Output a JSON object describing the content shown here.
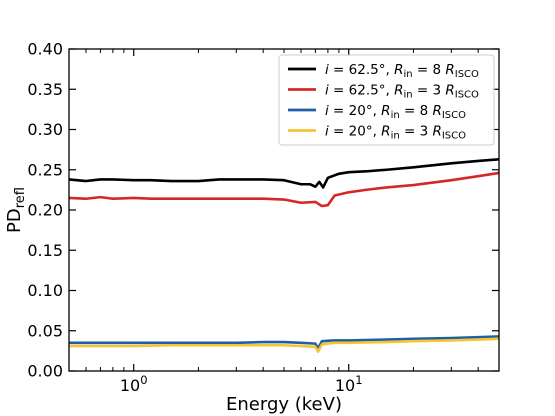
{
  "chart_data": {
    "type": "line",
    "xlabel": "Energy (keV)",
    "ylabel_main": "PD",
    "ylabel_sub": "refl",
    "xscale": "log",
    "xlim": [
      0.5,
      50
    ],
    "ylim": [
      0,
      0.4
    ],
    "grid": false,
    "legend_position": "top-right",
    "x_ticks": [
      {
        "value": 1,
        "base": "10",
        "exp": "0"
      },
      {
        "value": 10,
        "base": "10",
        "exp": "1"
      }
    ],
    "y_ticks": [
      "0.00",
      "0.05",
      "0.10",
      "0.15",
      "0.20",
      "0.25",
      "0.30",
      "0.35",
      "0.40"
    ],
    "series": [
      {
        "name": "i = 62.5°, R_in = 8 R_ISCO",
        "legend": {
          "var": "i",
          "ival": "62.5°",
          "r": "R",
          "rsub": "in",
          "rval": "8",
          "risco": "R",
          "riscosub": "ISCO"
        },
        "color": "#000000",
        "points": [
          [
            0.5,
            0.238
          ],
          [
            0.6,
            0.236
          ],
          [
            0.7,
            0.238
          ],
          [
            0.8,
            0.238
          ],
          [
            1.0,
            0.237
          ],
          [
            1.2,
            0.237
          ],
          [
            1.5,
            0.236
          ],
          [
            2.0,
            0.236
          ],
          [
            2.5,
            0.238
          ],
          [
            3.0,
            0.238
          ],
          [
            4.0,
            0.238
          ],
          [
            5.0,
            0.237
          ],
          [
            6.0,
            0.232
          ],
          [
            6.6,
            0.232
          ],
          [
            7.0,
            0.229
          ],
          [
            7.3,
            0.235
          ],
          [
            7.6,
            0.228
          ],
          [
            8.0,
            0.24
          ],
          [
            9.0,
            0.245
          ],
          [
            10,
            0.247
          ],
          [
            12,
            0.248
          ],
          [
            15,
            0.25
          ],
          [
            20,
            0.253
          ],
          [
            30,
            0.258
          ],
          [
            40,
            0.261
          ],
          [
            50,
            0.263
          ]
        ]
      },
      {
        "name": "i = 62.5°, R_in = 3 R_ISCO",
        "legend": {
          "var": "i",
          "ival": "62.5°",
          "r": "R",
          "rsub": "in",
          "rval": "3",
          "risco": "R",
          "riscosub": "ISCO"
        },
        "color": "#d62728",
        "points": [
          [
            0.5,
            0.215
          ],
          [
            0.6,
            0.214
          ],
          [
            0.7,
            0.216
          ],
          [
            0.8,
            0.214
          ],
          [
            1.0,
            0.215
          ],
          [
            1.2,
            0.214
          ],
          [
            1.5,
            0.214
          ],
          [
            2.0,
            0.214
          ],
          [
            2.5,
            0.214
          ],
          [
            3.0,
            0.214
          ],
          [
            4.0,
            0.214
          ],
          [
            5.0,
            0.213
          ],
          [
            6.0,
            0.209
          ],
          [
            7.0,
            0.21
          ],
          [
            7.5,
            0.205
          ],
          [
            8.0,
            0.206
          ],
          [
            8.6,
            0.218
          ],
          [
            10,
            0.222
          ],
          [
            12,
            0.225
          ],
          [
            15,
            0.228
          ],
          [
            20,
            0.231
          ],
          [
            30,
            0.237
          ],
          [
            40,
            0.242
          ],
          [
            50,
            0.246
          ]
        ]
      },
      {
        "name": "i = 20°, R_in = 8 R_ISCO",
        "legend": {
          "var": "i",
          "ival": "20°",
          "r": "R",
          "rsub": "in",
          "rval": "8",
          "risco": "R",
          "riscosub": "ISCO"
        },
        "color": "#1f5fa8",
        "points": [
          [
            0.5,
            0.035
          ],
          [
            0.7,
            0.035
          ],
          [
            1.0,
            0.035
          ],
          [
            1.5,
            0.035
          ],
          [
            2.0,
            0.035
          ],
          [
            3.0,
            0.035
          ],
          [
            4.0,
            0.036
          ],
          [
            5.0,
            0.036
          ],
          [
            6.0,
            0.035
          ],
          [
            7.0,
            0.034
          ],
          [
            7.2,
            0.028
          ],
          [
            7.5,
            0.037
          ],
          [
            8.5,
            0.038
          ],
          [
            10,
            0.038
          ],
          [
            15,
            0.039
          ],
          [
            20,
            0.04
          ],
          [
            30,
            0.041
          ],
          [
            40,
            0.042
          ],
          [
            50,
            0.043
          ]
        ]
      },
      {
        "name": "i = 20°, R_in = 3 R_ISCO",
        "legend": {
          "var": "i",
          "ival": "20°",
          "r": "R",
          "rsub": "in",
          "rval": "3",
          "risco": "R",
          "riscosub": "ISCO"
        },
        "color": "#f7c531",
        "points": [
          [
            0.5,
            0.031
          ],
          [
            0.7,
            0.031
          ],
          [
            1.0,
            0.031
          ],
          [
            1.5,
            0.032
          ],
          [
            2.0,
            0.032
          ],
          [
            3.0,
            0.032
          ],
          [
            4.0,
            0.032
          ],
          [
            5.0,
            0.032
          ],
          [
            6.0,
            0.031
          ],
          [
            7.0,
            0.03
          ],
          [
            7.2,
            0.024
          ],
          [
            7.5,
            0.033
          ],
          [
            8.5,
            0.035
          ],
          [
            10,
            0.035
          ],
          [
            15,
            0.036
          ],
          [
            20,
            0.037
          ],
          [
            30,
            0.038
          ],
          [
            40,
            0.039
          ],
          [
            50,
            0.04
          ]
        ]
      }
    ]
  }
}
